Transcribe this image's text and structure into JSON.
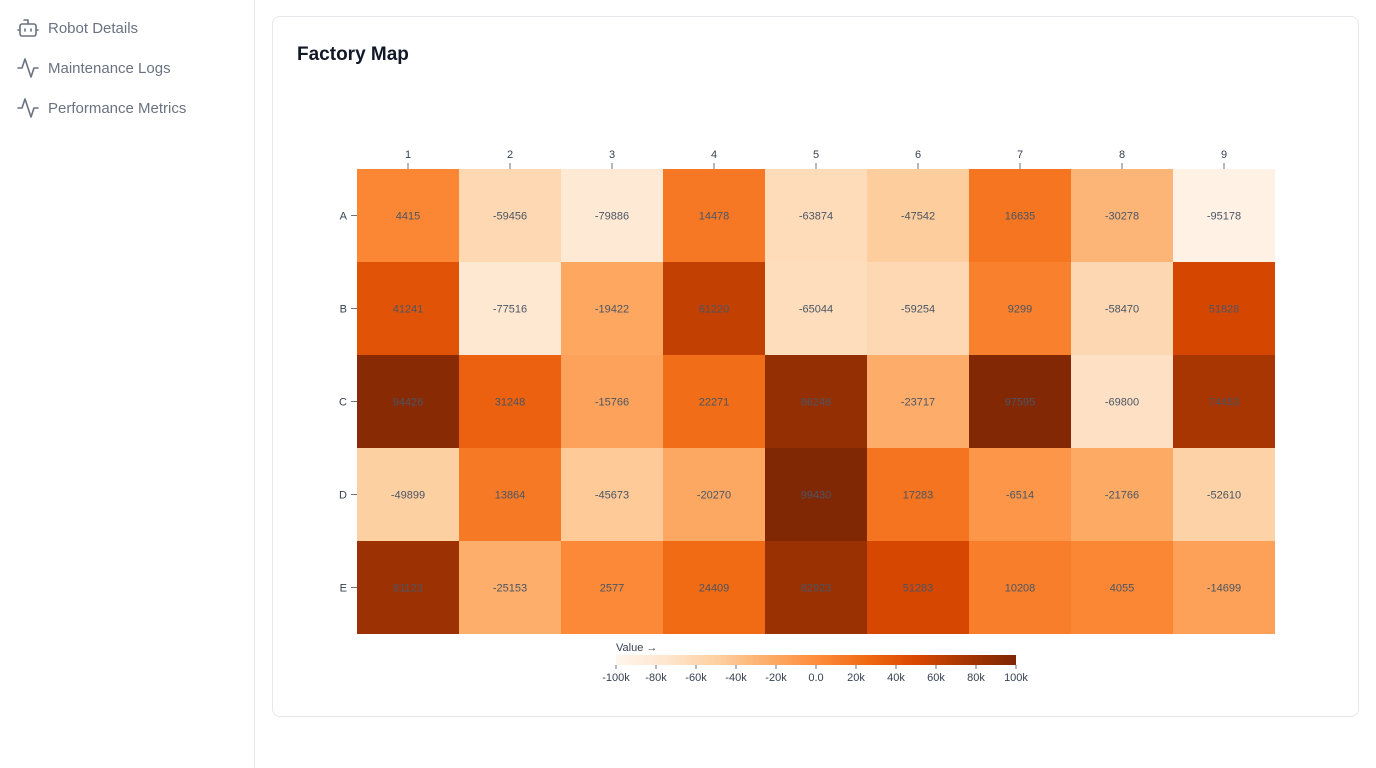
{
  "sidebar": {
    "items": [
      {
        "label": "Robot Details",
        "icon": "robot-icon"
      },
      {
        "label": "Maintenance Logs",
        "icon": "activity-icon"
      },
      {
        "label": "Performance Metrics",
        "icon": "activity-icon"
      }
    ]
  },
  "card": {
    "title": "Factory Map"
  },
  "colors": {
    "scale_low": "#fff5eb",
    "scale_mid": "#fd8d3c",
    "scale_high": "#7f2704"
  },
  "chart_data": {
    "type": "heatmap",
    "title": "Factory Map",
    "x_categories": [
      "1",
      "2",
      "3",
      "4",
      "5",
      "6",
      "7",
      "8",
      "9"
    ],
    "y_categories": [
      "A",
      "B",
      "C",
      "D",
      "E"
    ],
    "values": [
      [
        4415,
        -59456,
        -79886,
        14478,
        -63874,
        -47542,
        16635,
        -30278,
        -95178
      ],
      [
        41241,
        -77516,
        -19422,
        61220,
        -65044,
        -59254,
        9299,
        -58470,
        51828
      ],
      [
        94426,
        31248,
        -15766,
        22271,
        86246,
        -23717,
        97595,
        -69800,
        74453
      ],
      [
        -49899,
        13864,
        -45673,
        -20270,
        99430,
        17283,
        -6514,
        -21766,
        -52610
      ],
      [
        81123,
        -25153,
        2577,
        24409,
        82923,
        51283,
        10208,
        4055,
        -14699
      ]
    ],
    "color_range": [
      -100000,
      100000
    ],
    "legend": {
      "title": "Value →",
      "ticks": [
        "-100k",
        "-80k",
        "-60k",
        "-40k",
        "-20k",
        "0.0",
        "20k",
        "40k",
        "60k",
        "80k",
        "100k"
      ]
    }
  }
}
